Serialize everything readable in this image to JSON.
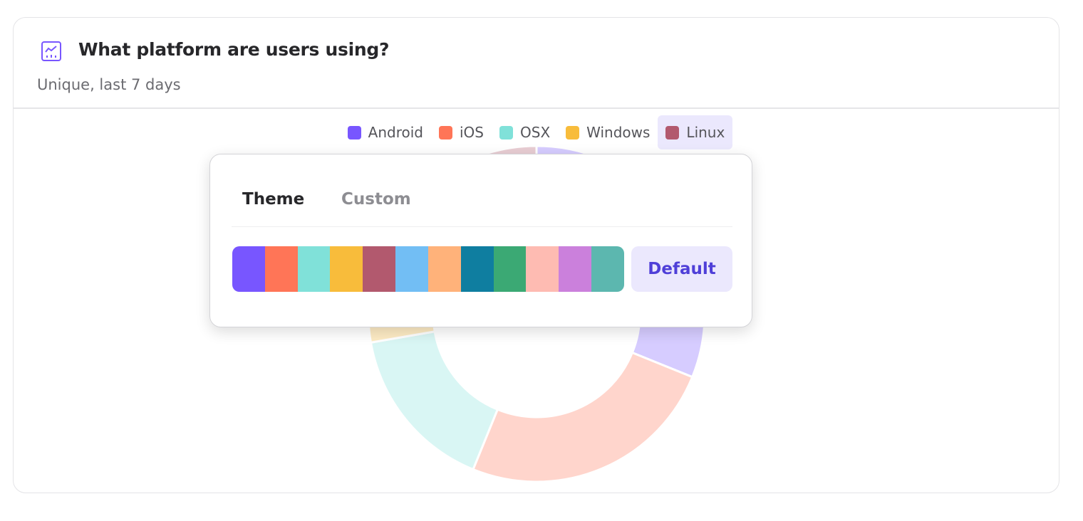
{
  "header": {
    "icon": "line-chart-icon",
    "title": "What platform are users using?",
    "subtitle": "Unique, last 7 days"
  },
  "chart_data": {
    "type": "pie",
    "donut": true,
    "categories": [
      "Android",
      "iOS",
      "OSX",
      "Windows",
      "Linux"
    ],
    "values": [
      31.1,
      25.0,
      16.1,
      18.3,
      9.4
    ],
    "colors": [
      "#7856ff",
      "#ff7557",
      "#80e1d9",
      "#f8bc3b",
      "#b2596e"
    ],
    "legend_position": "top",
    "highlighted_legend": "Linux"
  },
  "popover": {
    "tabs": [
      {
        "label": "Theme",
        "active": true
      },
      {
        "label": "Custom",
        "active": false
      }
    ],
    "palette": [
      "#7856ff",
      "#ff7557",
      "#80e1d9",
      "#f8bc3b",
      "#b2596e",
      "#72bef4",
      "#ffb27a",
      "#0f7ea0",
      "#3ba974",
      "#febbb2",
      "#cb80dc",
      "#5cb7af"
    ],
    "default_label": "Default"
  }
}
